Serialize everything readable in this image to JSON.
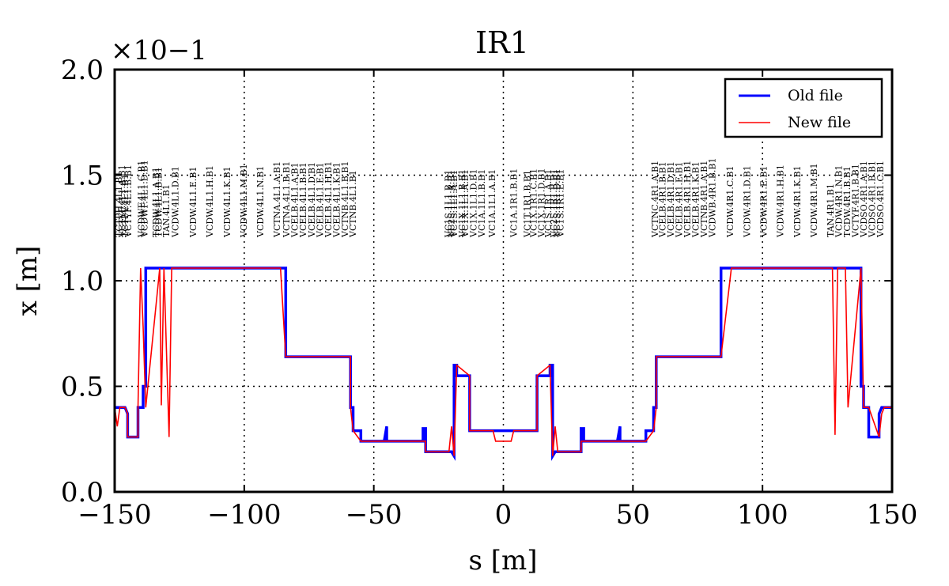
{
  "chart_data": {
    "type": "line",
    "title": "IR1",
    "xlabel": "s [m]",
    "ylabel": "x [m]",
    "scale_factor": "×10−1",
    "xlim": [
      -150,
      150
    ],
    "ylim": [
      0.0,
      2.0
    ],
    "xticks": [
      -150,
      -100,
      -50,
      0,
      50,
      100,
      150
    ],
    "xtick_labels": [
      "−150",
      "−100",
      "−50",
      "0",
      "50",
      "100",
      "150"
    ],
    "yticks": [
      0.0,
      0.5,
      1.0,
      1.5,
      2.0
    ],
    "ytick_labels": [
      "0.0",
      "0.5",
      "1.0",
      "1.5",
      "2.0"
    ],
    "grid": true,
    "legend_position": "top-right",
    "series": [
      {
        "name": "Old file",
        "color": "#0000ff",
        "x": [
          -150,
          -146,
          -145,
          -145,
          -141,
          -141,
          -139,
          -139,
          -138,
          -138,
          -84,
          -84,
          -59,
          -59,
          -58,
          -58,
          -55,
          -55,
          -46,
          -45,
          -45,
          -44,
          -31,
          -31,
          -30,
          -30,
          -20,
          -19,
          -19,
          -18,
          -18,
          -13,
          -13,
          -5,
          -5,
          5,
          5,
          13,
          13,
          18,
          18,
          19,
          19,
          20,
          30,
          30,
          31,
          31,
          44,
          45,
          45,
          46,
          55,
          55,
          58,
          58,
          59,
          59,
          84,
          84,
          138,
          138,
          139,
          139,
          141,
          141,
          145,
          145,
          146,
          150
        ],
        "y": [
          0.4,
          0.4,
          0.37,
          0.26,
          0.26,
          0.4,
          0.4,
          0.5,
          0.5,
          1.06,
          1.06,
          0.64,
          0.64,
          0.4,
          0.4,
          0.29,
          0.29,
          0.24,
          0.24,
          0.31,
          0.24,
          0.24,
          0.24,
          0.3,
          0.3,
          0.19,
          0.19,
          0.17,
          0.6,
          0.6,
          0.55,
          0.55,
          0.29,
          0.29,
          0.29,
          0.29,
          0.29,
          0.29,
          0.55,
          0.55,
          0.6,
          0.6,
          0.17,
          0.19,
          0.19,
          0.3,
          0.3,
          0.24,
          0.24,
          0.31,
          0.24,
          0.24,
          0.24,
          0.29,
          0.29,
          0.4,
          0.4,
          0.64,
          0.64,
          1.06,
          1.06,
          0.5,
          0.5,
          0.4,
          0.4,
          0.26,
          0.26,
          0.37,
          0.4,
          0.4
        ]
      },
      {
        "name": "New file",
        "color": "#ff0000",
        "x": [
          -150,
          -149,
          -148,
          -147,
          -146,
          -145,
          -145,
          -141,
          -141,
          -140,
          -139,
          -138,
          -132.6,
          -132,
          -131,
          -129,
          -128,
          -126.8,
          -86,
          -84,
          -59,
          -59,
          -58,
          -55,
          -45,
          -30,
          -30,
          -21,
          -20,
          -19,
          -18,
          -13,
          -13,
          -4,
          -3,
          3,
          4,
          13,
          13,
          18,
          19,
          20,
          21,
          30,
          30,
          45,
          55,
          58,
          59,
          59,
          84,
          88,
          127,
          128,
          129,
          132,
          133,
          138,
          139,
          140,
          141,
          145,
          145,
          146,
          147,
          148,
          149,
          150
        ],
        "y": [
          0.4,
          0.31,
          0.4,
          0.4,
          0.4,
          0.37,
          0.26,
          0.26,
          0.4,
          1.06,
          0.78,
          0.4,
          1.06,
          0.41,
          1.06,
          0.26,
          1.06,
          1.06,
          1.06,
          0.64,
          0.64,
          0.4,
          0.29,
          0.24,
          0.24,
          0.24,
          0.19,
          0.19,
          0.31,
          0.17,
          0.6,
          0.55,
          0.29,
          0.29,
          0.24,
          0.24,
          0.29,
          0.29,
          0.55,
          0.6,
          0.17,
          0.31,
          0.19,
          0.19,
          0.24,
          0.24,
          0.24,
          0.29,
          0.4,
          0.64,
          0.64,
          1.06,
          1.06,
          0.27,
          1.06,
          1.06,
          0.4,
          1.06,
          0.4,
          0.4,
          0.4,
          0.26,
          0.26,
          0.37,
          0.4,
          0.4,
          0.4,
          0.4
        ]
      }
    ],
    "element_labels": [
      {
        "s": -148.4,
        "text": "TCTPH.4L1.B1"
      },
      {
        "s": -147.2,
        "text": "VCTYF.4L1.A.B1"
      },
      {
        "s": -146.0,
        "text": "TCTPV.4L1.B1"
      },
      {
        "s": -144.8,
        "text": "VCTYF.4L1.B.B1"
      },
      {
        "s": -139.8,
        "text": "VCDWF.4L1.C.B1"
      },
      {
        "s": -138.6,
        "text": "VCDWF.4L1.D.B1"
      },
      {
        "s": -134.2,
        "text": "TCDW.4L1.A.B1"
      },
      {
        "s": -133.0,
        "text": "TCDW.4L1.B.B1"
      },
      {
        "s": -130.2,
        "text": "TAN.4L1.B1"
      },
      {
        "s": -126.6,
        "text": "VCDW.4L1.D.B1"
      },
      {
        "s": -119.8,
        "text": "VCDW.4L1.E.B1"
      },
      {
        "s": -113.4,
        "text": "VCDW.4L1.H.B1"
      },
      {
        "s": -106.6,
        "text": "VCDW.4L1.K.B1"
      },
      {
        "s": -100.2,
        "text": "VCDW.4L1.M.B1"
      },
      {
        "s": -93.8,
        "text": "VCDW.4L1.N.B1"
      },
      {
        "s": -87.4,
        "text": "VCTNA.4L1.A.B1"
      },
      {
        "s": -83.8,
        "text": "VCTNA.4L1.B.B1"
      },
      {
        "s": -80.6,
        "text": "VCELB.4L1.A.B1"
      },
      {
        "s": -77.4,
        "text": "VCELB.4L1.B.B1"
      },
      {
        "s": -74.0,
        "text": "VCELB.4L1.D.B1"
      },
      {
        "s": -70.8,
        "text": "VCELB.4L1.E.B1"
      },
      {
        "s": -67.6,
        "text": "VCELB.4L1.H.B1"
      },
      {
        "s": -64.4,
        "text": "VCELB.4L1.K.B1"
      },
      {
        "s": -61.2,
        "text": "VCTNB.4L1.B.B1"
      },
      {
        "s": -58.2,
        "text": "VCTNB.4L1.B1"
      },
      {
        "s": -21.4,
        "text": "VC1S.1L1.B.B1"
      },
      {
        "s": -20.2,
        "text": "VC2S.1L1.A.B1"
      },
      {
        "s": -19.0,
        "text": "VC1S.1L1.A.B1"
      },
      {
        "s": -16.0,
        "text": "VC1X.1L1.B.B1"
      },
      {
        "s": -14.8,
        "text": "VC1X.1L1.A.B1"
      },
      {
        "s": -11.6,
        "text": "VC1X.1L1.D.B1"
      },
      {
        "s": -8.4,
        "text": "VC1A.1L1.B.B1"
      },
      {
        "s": -4.4,
        "text": "VC1A.1L1.A.B1"
      },
      {
        "s": 4.0,
        "text": "VC1A.1R1.B.B1"
      },
      {
        "s": 9.2,
        "text": "VC1T.1R1.B.B1"
      },
      {
        "s": 11.6,
        "text": "VC1X.1R1.C.B1"
      },
      {
        "s": 14.6,
        "text": "VC1X.1R1.D.B1"
      },
      {
        "s": 17.2,
        "text": "VC1S.1R1.A.B1"
      },
      {
        "s": 19.4,
        "text": "VC2S.1R1.B.B1"
      },
      {
        "s": 20.6,
        "text": "VC1S.1R1.D.B1"
      },
      {
        "s": 22.0,
        "text": "VC1S.1R1.E.B1"
      },
      {
        "s": 58.4,
        "text": "VCTNC.4R1.A.B1"
      },
      {
        "s": 61.4,
        "text": "VCELB.4R1.B.B1"
      },
      {
        "s": 64.6,
        "text": "VCELB.4R1.D.B1"
      },
      {
        "s": 67.8,
        "text": "VCELB.4R1.E.B1"
      },
      {
        "s": 71.0,
        "text": "VCELB.4R1.H.B1"
      },
      {
        "s": 74.2,
        "text": "VCELB.4R1.K.B1"
      },
      {
        "s": 77.4,
        "text": "VCTNB.4R1.A.B1"
      },
      {
        "s": 80.6,
        "text": "VCDWB.4R1.B.B1"
      },
      {
        "s": 87.4,
        "text": "VCDW.4R1.C.B1"
      },
      {
        "s": 94.0,
        "text": "VCDW.4R1.D.B1"
      },
      {
        "s": 100.4,
        "text": "VCDW.4R1.E.B1"
      },
      {
        "s": 106.8,
        "text": "VCDW.4R1.H.B1"
      },
      {
        "s": 113.4,
        "text": "VCDW.4R1.K.B1"
      },
      {
        "s": 119.8,
        "text": "VCDW.4R1.M.B1"
      },
      {
        "s": 126.2,
        "text": "TAN.4R1.B1"
      },
      {
        "s": 129.4,
        "text": "VCDW.4R1.N.B1"
      },
      {
        "s": 132.6,
        "text": "TCDW.4R1.B.B1"
      },
      {
        "s": 135.8,
        "text": "VCTYF.4R1.B.B1"
      },
      {
        "s": 139.0,
        "text": "VCDSO.4R1.A.B1"
      },
      {
        "s": 142.2,
        "text": "VCDSO.4R1.B.B1"
      },
      {
        "s": 145.4,
        "text": "VCDSO.4R1.C.B1"
      }
    ]
  }
}
